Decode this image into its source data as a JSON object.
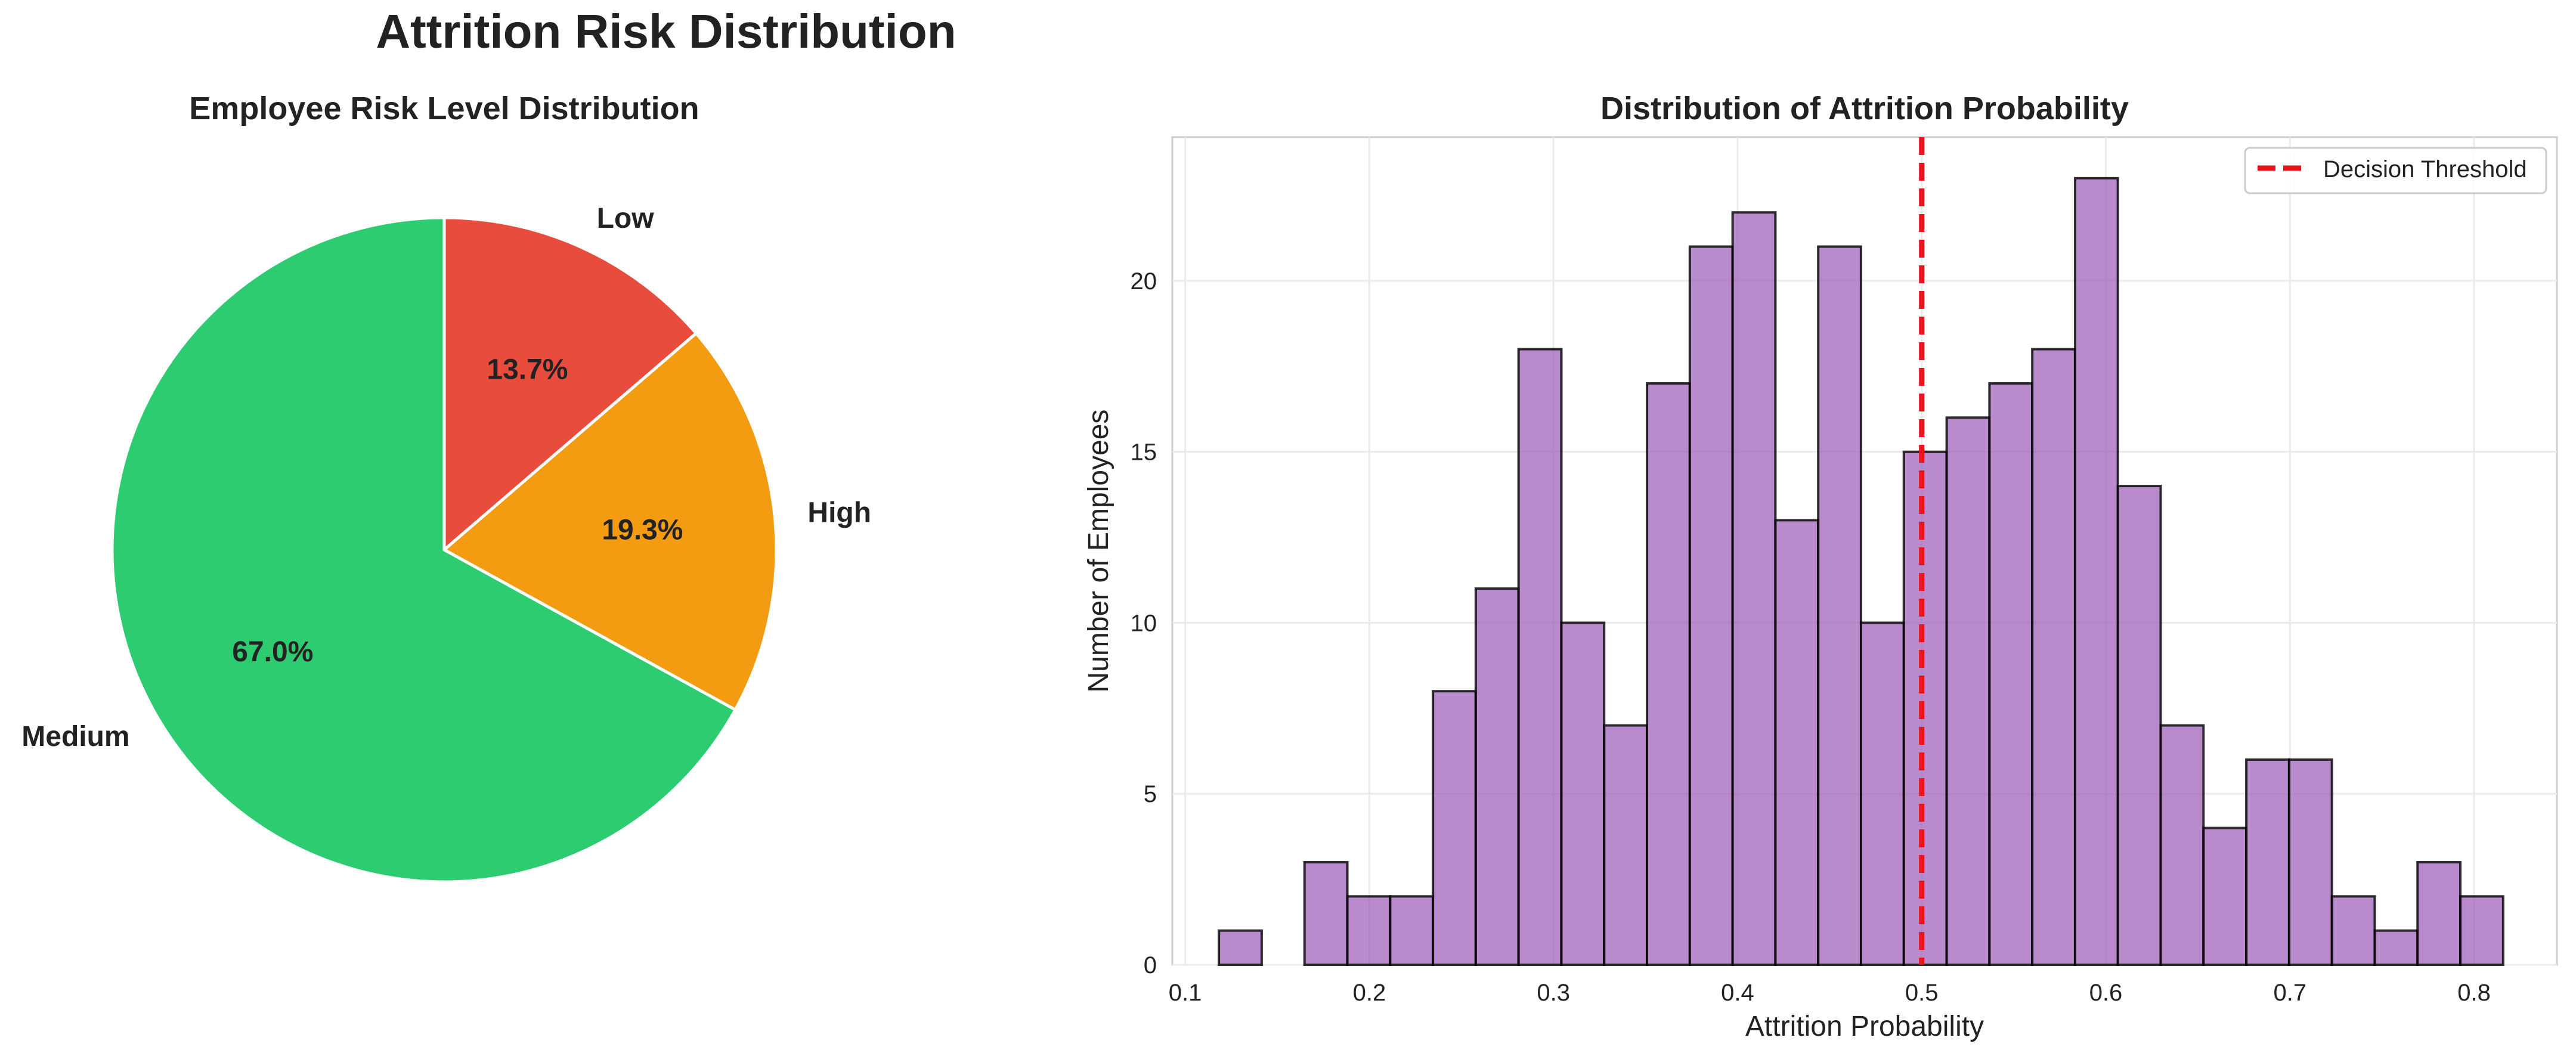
{
  "figure": {
    "title": "Attrition Risk Distribution"
  },
  "chart_data": [
    {
      "type": "pie",
      "title": "Employee Risk Level Distribution",
      "slices": [
        {
          "label": "Low",
          "value": 13.7,
          "pct_label": "13.7%",
          "color": "#e74c3c"
        },
        {
          "label": "High",
          "value": 19.3,
          "pct_label": "19.3%",
          "color": "#f39c12"
        },
        {
          "label": "Medium",
          "value": 67.0,
          "pct_label": "67.0%",
          "color": "#2ecc71"
        }
      ],
      "start_angle_deg": 90,
      "direction": "clockwise",
      "edge_color": "#ffffff"
    },
    {
      "type": "bar",
      "subtype": "histogram",
      "title": "Distribution of Attrition Probability",
      "xlabel": "Attrition Probability",
      "ylabel": "Number of Employees",
      "xlim": [
        0.093,
        0.845
      ],
      "ylim": [
        0,
        24.2
      ],
      "xticks": [
        0.1,
        0.2,
        0.3,
        0.4,
        0.5,
        0.6,
        0.7,
        0.8
      ],
      "xtick_labels": [
        "0.1",
        "0.2",
        "0.3",
        "0.4",
        "0.5",
        "0.6",
        "0.7",
        "0.8"
      ],
      "yticks": [
        0,
        5,
        10,
        15,
        20
      ],
      "ytick_labels": [
        "0",
        "5",
        "10",
        "15",
        "20"
      ],
      "bin_start": 0.1183,
      "bin_width": 0.02325,
      "counts": [
        1,
        0,
        3,
        2,
        2,
        8,
        11,
        18,
        10,
        7,
        17,
        21,
        22,
        13,
        21,
        10,
        15,
        16,
        17,
        18,
        23,
        14,
        7,
        4,
        6,
        6,
        2,
        1,
        3,
        2
      ],
      "bar_color": "#9b59b6",
      "bar_alpha": 0.7,
      "edge_color": "#000000",
      "threshold": {
        "x": 0.5,
        "label": "Decision Threshold",
        "color": "#e8141c",
        "style": "dashed"
      },
      "legend": {
        "position": "top-right",
        "entries": [
          "Decision Threshold"
        ]
      },
      "grid": true
    }
  ]
}
